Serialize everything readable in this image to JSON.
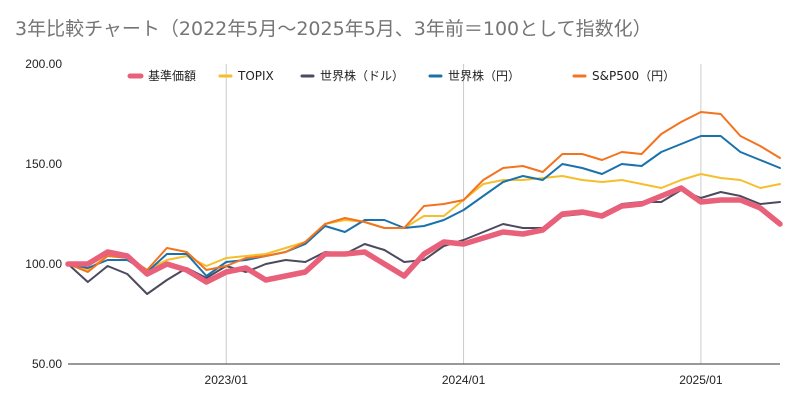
{
  "title": "3年比較チャート（2022年5月～2025年5月、3年前＝100として指数化）",
  "chart_data": {
    "type": "line",
    "title": "3年比較チャート（2022年5月～2025年5月、3年前＝100として指数化）",
    "xlabel": "",
    "ylabel": "",
    "x": [
      "2022/05",
      "2022/06",
      "2022/07",
      "2022/08",
      "2022/09",
      "2022/10",
      "2022/11",
      "2022/12",
      "2023/01",
      "2023/02",
      "2023/03",
      "2023/04",
      "2023/05",
      "2023/06",
      "2023/07",
      "2023/08",
      "2023/09",
      "2023/10",
      "2023/11",
      "2023/12",
      "2024/01",
      "2024/02",
      "2024/03",
      "2024/04",
      "2024/05",
      "2024/06",
      "2024/07",
      "2024/08",
      "2024/09",
      "2024/10",
      "2024/11",
      "2024/12",
      "2025/01",
      "2025/02",
      "2025/03",
      "2025/04",
      "2025/05"
    ],
    "x_ticks": [
      "2023/01",
      "2024/01",
      "2025/01"
    ],
    "y_ticks": [
      "50.00",
      "100.00",
      "150.00",
      "200.00"
    ],
    "ylim": [
      50,
      200
    ],
    "grid": "vertical lines at x ticks",
    "legend_position": "top",
    "series": [
      {
        "name": "基準価額",
        "color": "#e8607a",
        "emphasis": true,
        "values": [
          100,
          100,
          106,
          104,
          95,
          100,
          97,
          91,
          96,
          98,
          92,
          94,
          96,
          105,
          105,
          106,
          100,
          94,
          105,
          111,
          110,
          113,
          116,
          115,
          117,
          125,
          126,
          124,
          129,
          130,
          134,
          138,
          131,
          132,
          132,
          128,
          120
        ]
      },
      {
        "name": "TOPIX",
        "color": "#f5be2b",
        "emphasis": false,
        "values": [
          100,
          97,
          104,
          104,
          97,
          102,
          104,
          99,
          103,
          104,
          105,
          108,
          111,
          120,
          122,
          121,
          118,
          118,
          124,
          124,
          132,
          140,
          142,
          142,
          143,
          144,
          142,
          141,
          142,
          140,
          138,
          142,
          145,
          143,
          142,
          138,
          140
        ]
      },
      {
        "name": "世界株（ドル）",
        "color": "#4b4a5e",
        "emphasis": false,
        "values": [
          100,
          91,
          99,
          95,
          85,
          92,
          98,
          93,
          99,
          96,
          100,
          102,
          101,
          106,
          105,
          110,
          107,
          101,
          102,
          109,
          112,
          116,
          120,
          118,
          118,
          124,
          125,
          125,
          130,
          131,
          131,
          137,
          133,
          136,
          134,
          130,
          131
        ]
      },
      {
        "name": "世界株（円）",
        "color": "#1a72ad",
        "emphasis": false,
        "values": [
          100,
          98,
          102,
          102,
          96,
          105,
          105,
          94,
          101,
          102,
          104,
          106,
          110,
          119,
          116,
          122,
          122,
          118,
          119,
          122,
          127,
          134,
          141,
          144,
          142,
          150,
          148,
          145,
          150,
          149,
          156,
          160,
          164,
          164,
          156,
          152,
          148
        ]
      },
      {
        "name": "S&P500（円）",
        "color": "#f4731f",
        "emphasis": false,
        "values": [
          100,
          96,
          104,
          103,
          97,
          108,
          106,
          97,
          99,
          103,
          104,
          106,
          111,
          120,
          123,
          121,
          118,
          118,
          129,
          130,
          132,
          142,
          148,
          149,
          146,
          155,
          155,
          152,
          156,
          155,
          165,
          171,
          176,
          175,
          164,
          159,
          153
        ]
      }
    ]
  }
}
